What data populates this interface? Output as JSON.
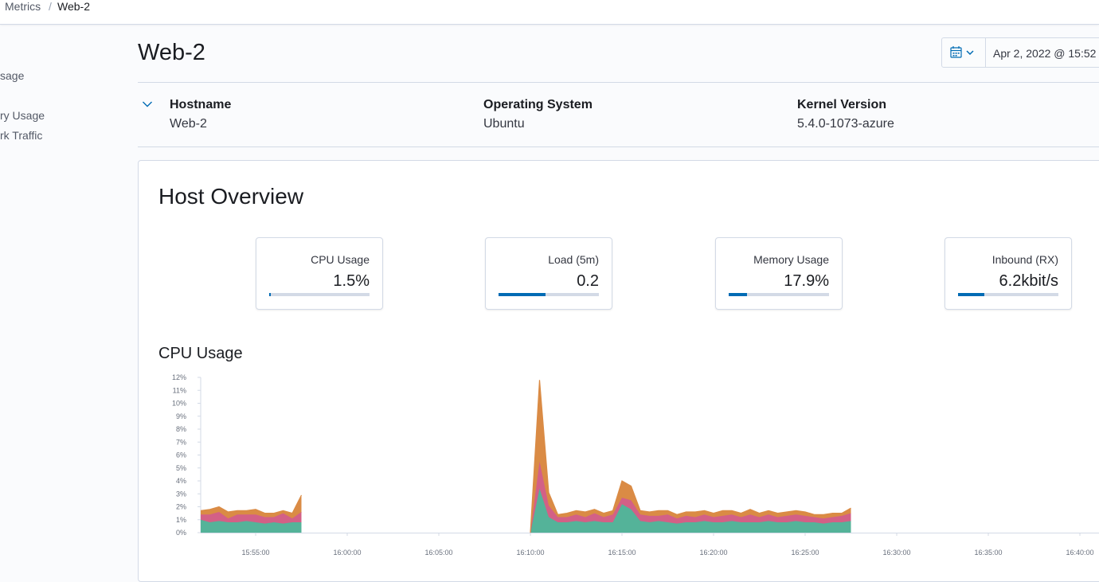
{
  "breadcrumb": {
    "parent": "Metrics",
    "separator": "/",
    "current": "Web-2"
  },
  "sidebar": {
    "items": [
      {
        "label": "sage"
      },
      {
        "label": "ry Usage"
      },
      {
        "label": "rk Traffic"
      }
    ]
  },
  "page": {
    "title": "Web-2",
    "date_range_start": "Apr 2, 2022 @ 15:52"
  },
  "metadata": {
    "hostname_label": "Hostname",
    "hostname_value": "Web-2",
    "os_label": "Operating System",
    "os_value": "Ubuntu",
    "kernel_label": "Kernel Version",
    "kernel_value": "5.4.0-1073-azure"
  },
  "overview": {
    "title": "Host Overview",
    "kpis": [
      {
        "label": "CPU Usage",
        "value": "1.5%",
        "fraction": 0.015
      },
      {
        "label": "Load (5m)",
        "value": "0.2",
        "fraction": 0.47
      },
      {
        "label": "Memory Usage",
        "value": "17.9%",
        "fraction": 0.179
      },
      {
        "label": "Inbound (RX)",
        "value": "6.2kbit/s",
        "fraction": 0.26
      }
    ]
  },
  "colors": {
    "accent": "#006bb4",
    "series_green": "#54b399",
    "series_pink": "#d36086",
    "series_orange": "#da8b45"
  },
  "chart_data": {
    "type": "area",
    "title": "CPU Usage",
    "y_ticks": [
      "0%",
      "1%",
      "2%",
      "3%",
      "4%",
      "5%",
      "6%",
      "7%",
      "8%",
      "9%",
      "10%",
      "11%",
      "12%"
    ],
    "x_ticks": [
      "15:55:00",
      "16:00:00",
      "16:05:00",
      "16:10:00",
      "16:15:00",
      "16:20:00",
      "16:25:00",
      "16:30:00",
      "16:35:00",
      "16:40:00"
    ],
    "ylim": [
      0,
      12
    ],
    "x_minutes": [
      52,
      52.5,
      53,
      53.5,
      54,
      54.5,
      55,
      55.5,
      56,
      56.5,
      57,
      57.5,
      null,
      70,
      70.5,
      71,
      71.5,
      72,
      72.5,
      73,
      73.5,
      74,
      74.5,
      75,
      75.5,
      76,
      76.5,
      77,
      77.5,
      78,
      78.5,
      79,
      79.5,
      80,
      80.5,
      81,
      81.5,
      82,
      82.5,
      83,
      83.5,
      84,
      84.5,
      85,
      85.5,
      86,
      86.5,
      87,
      87.5
    ],
    "series": [
      {
        "name": "green",
        "values": [
          1.0,
          0.8,
          0.9,
          0.8,
          0.8,
          0.9,
          0.8,
          0.7,
          0.8,
          0.7,
          0.8,
          0.8,
          null,
          0,
          3.4,
          1.2,
          0.8,
          0.8,
          0.9,
          0.8,
          0.9,
          0.8,
          0.8,
          2.2,
          1.8,
          0.9,
          0.8,
          0.9,
          0.8,
          0.7,
          0.8,
          0.8,
          0.9,
          0.8,
          0.8,
          0.9,
          0.8,
          0.8,
          0.8,
          0.9,
          0.8,
          0.8,
          0.9,
          0.8,
          0.8,
          0.7,
          0.8,
          0.8,
          0.9
        ]
      },
      {
        "name": "pink",
        "values": [
          0.4,
          0.6,
          0.7,
          0.3,
          0.6,
          0.5,
          0.6,
          0.5,
          0.4,
          0.8,
          0.3,
          0.8,
          null,
          0,
          2.1,
          0.9,
          0.4,
          0.4,
          0.5,
          0.4,
          0.6,
          0.4,
          0.6,
          0.5,
          0.7,
          0.5,
          0.5,
          0.4,
          0.6,
          0.4,
          0.5,
          0.4,
          0.5,
          0.4,
          0.5,
          0.5,
          0.4,
          0.6,
          0.4,
          0.5,
          0.4,
          0.5,
          0.5,
          0.5,
          0.4,
          0.4,
          0.4,
          0.5,
          0.6
        ]
      },
      {
        "name": "orange",
        "values": [
          0.3,
          0.4,
          0.4,
          0.5,
          0.3,
          0.3,
          0.4,
          0.3,
          0.3,
          0.2,
          0.4,
          1.3,
          null,
          0,
          6.3,
          1.0,
          0.2,
          0.3,
          0.3,
          0.4,
          0.3,
          0.3,
          0.3,
          1.3,
          1.1,
          0.3,
          0.3,
          0.4,
          0.3,
          0.3,
          0.3,
          0.4,
          0.3,
          0.3,
          0.4,
          0.3,
          0.3,
          0.4,
          0.3,
          0.3,
          0.3,
          0.3,
          0.3,
          0.3,
          0.2,
          0.3,
          0.3,
          0.2,
          0.4
        ]
      }
    ]
  }
}
